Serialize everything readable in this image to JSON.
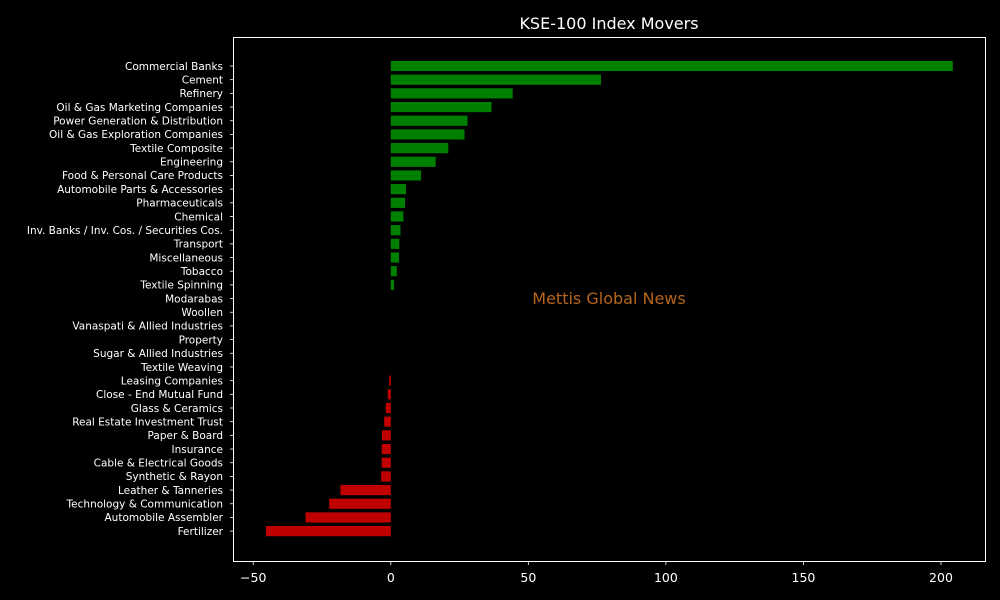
{
  "chart_data": {
    "type": "bar",
    "orientation": "horizontal",
    "title": "KSE-100 Index Movers",
    "xlabel": "",
    "ylabel": "",
    "xlim": [
      -57,
      216
    ],
    "xticks": [
      -50,
      0,
      50,
      100,
      150,
      200
    ],
    "grid": false,
    "legend": "none",
    "categories": [
      "Commercial Banks",
      "Cement",
      "Refinery",
      "Oil & Gas Marketing Companies",
      "Power Generation & Distribution",
      "Oil & Gas Exploration Companies",
      "Textile Composite",
      "Engineering",
      "Food & Personal Care Products",
      "Automobile Parts & Accessories",
      "Pharmaceuticals",
      "Chemical",
      "Inv. Banks / Inv. Cos. / Securities Cos.",
      "Transport",
      "Miscellaneous",
      "Tobacco",
      "Textile Spinning",
      "Modarabas",
      "Woollen",
      "Vanaspati & Allied Industries",
      "Property",
      "Sugar & Allied Industries",
      "Textile Weaving",
      "Leasing Companies",
      "Close - End Mutual Fund",
      "Glass & Ceramics",
      "Real Estate Investment Trust",
      "Paper & Board",
      "Insurance",
      "Cable & Electrical Goods",
      "Synthetic & Rayon",
      "Leather & Tanneries",
      "Technology & Communication",
      "Automobile Assembler",
      "Fertilizer"
    ],
    "values": [
      204.3,
      76.4,
      44.3,
      36.6,
      27.9,
      26.8,
      20.9,
      16.3,
      11.0,
      5.5,
      5.2,
      4.6,
      3.5,
      3.1,
      3.0,
      2.2,
      1.2,
      0.0,
      0.0,
      0.0,
      0.0,
      0.0,
      0.0,
      -0.6,
      -1.1,
      -1.8,
      -2.4,
      -3.2,
      -3.3,
      -3.3,
      -3.5,
      -18.3,
      -22.4,
      -31.0,
      -45.4
    ],
    "colors": {
      "positive": "#008000",
      "negative": "#c00000"
    },
    "watermark": "Mettis Global News",
    "watermark_color": "#b5651d"
  }
}
